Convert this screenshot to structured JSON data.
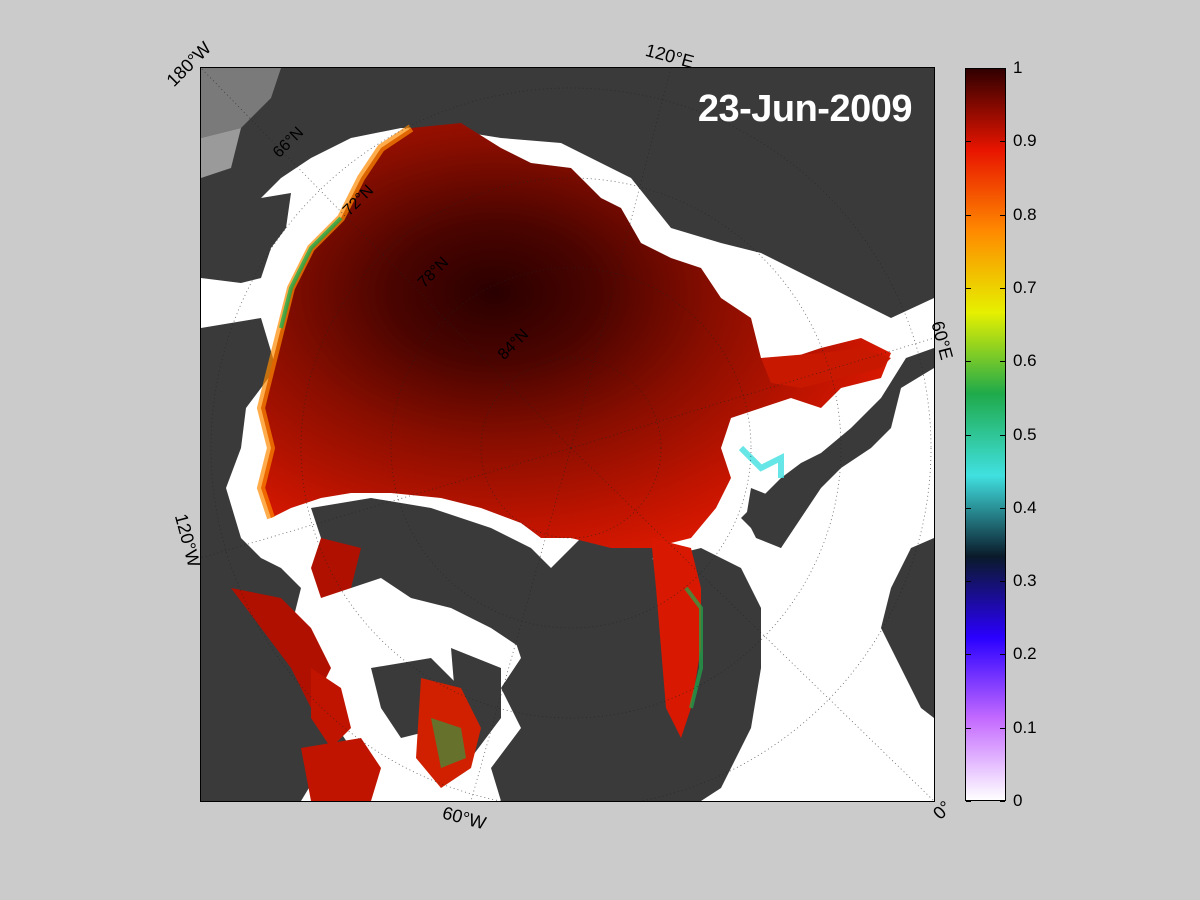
{
  "map": {
    "date": "23-Jun-2009",
    "lon_labels": [
      "180°W",
      "120°E",
      "60°E",
      "0°",
      "60°W",
      "120°W"
    ],
    "lat_labels": [
      "66°N",
      "72°N",
      "78°N",
      "84°N"
    ]
  },
  "colorbar": {
    "ticks": [
      "1",
      "0.9",
      "0.8",
      "0.7",
      "0.6",
      "0.5",
      "0.4",
      "0.3",
      "0.2",
      "0.1",
      "0"
    ],
    "colors": [
      "#ffffff",
      "#c46aff",
      "#2a00ff",
      "#0a1a2a",
      "#40e0e0",
      "#1faa4a",
      "#e6f000",
      "#ff8a00",
      "#e81400",
      "#300000"
    ]
  }
}
